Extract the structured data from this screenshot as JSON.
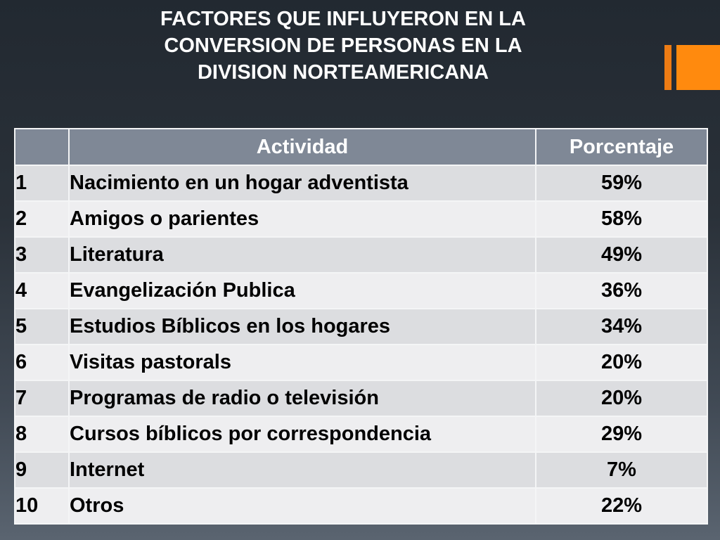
{
  "slide": {
    "title_lines": [
      "FACTORES QUE INFLUYERON EN LA",
      "CONVERSION DE PERSONAS EN LA",
      "DIVISION NORTEAMERICANA"
    ]
  },
  "table": {
    "headers": [
      "",
      "Actividad",
      "Porcentaje"
    ],
    "rows": [
      {
        "num": "1",
        "actividad": "Nacimiento en un hogar adventista",
        "porcentaje": "59%"
      },
      {
        "num": "2",
        "actividad": "Amigos o parientes",
        "porcentaje": "58%"
      },
      {
        "num": "3",
        "actividad": "Literatura",
        "porcentaje": "49%"
      },
      {
        "num": "4",
        "actividad": "Evangelización Publica",
        "porcentaje": "36%"
      },
      {
        "num": "5",
        "actividad": "Estudios Bíblicos en los hogares",
        "porcentaje": "34%"
      },
      {
        "num": "6",
        "actividad": "Visitas pastorals",
        "porcentaje": "20%"
      },
      {
        "num": "7",
        "actividad": "Programas de radio o televisión",
        "porcentaje": "20%"
      },
      {
        "num": "8",
        "actividad": "Cursos bíblicos por correspondencia",
        "porcentaje": "29%"
      },
      {
        "num": "9",
        "actividad": "Internet",
        "porcentaje": "7%"
      },
      {
        "num": "10",
        "actividad": "Otros",
        "porcentaje": "22%"
      }
    ]
  },
  "colors": {
    "background_top": "#222931",
    "background_bottom": "#5a6470",
    "accent_orange": "#ff8a0e",
    "header_fill": "#7f8896",
    "row_fill_odd": "#dcdde0",
    "row_fill_even": "#eeeef0"
  }
}
